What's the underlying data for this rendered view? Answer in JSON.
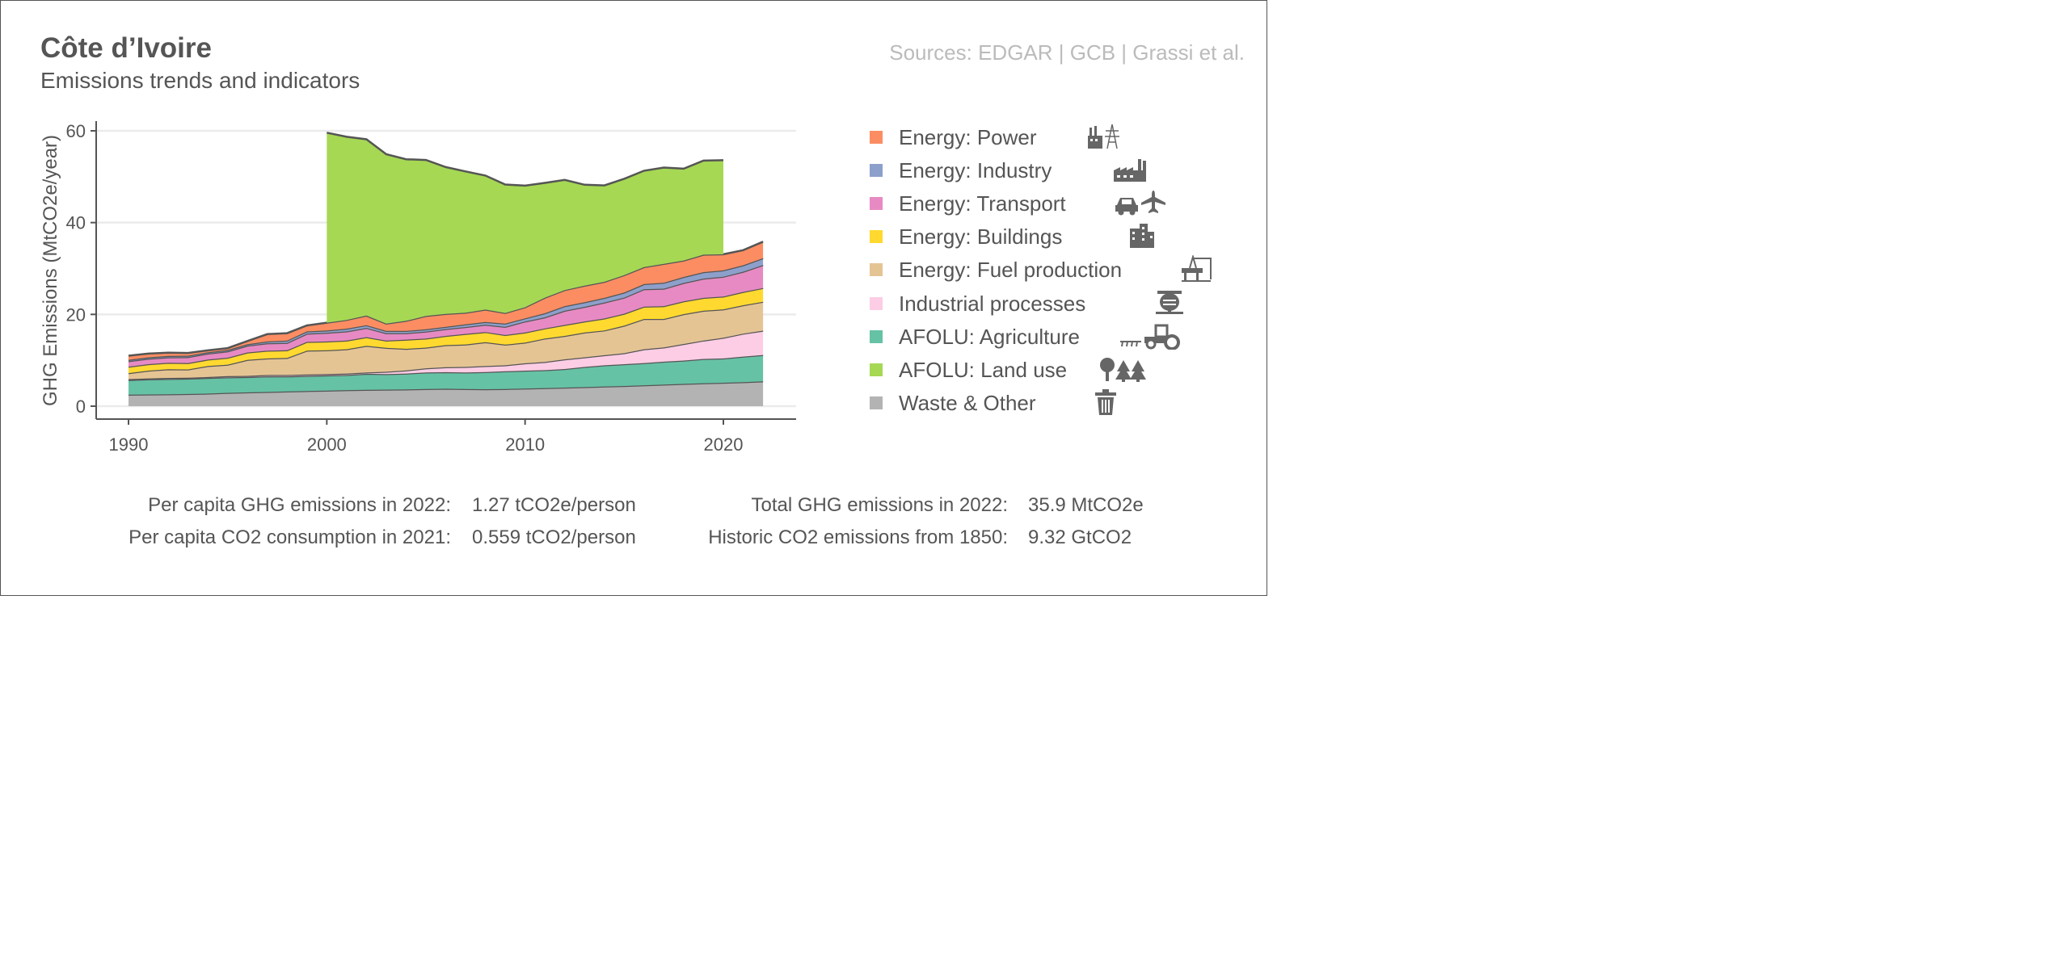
{
  "header": {
    "title": "Côte d’Ivoire",
    "subtitle": "Emissions trends and indicators",
    "sources": "Sources: EDGAR | GCB | Grassi et al."
  },
  "colors": {
    "waste": "#b3b3b3",
    "agriculture": "#66c2a5",
    "industrial": "#fccde5",
    "fuel": "#e5c494",
    "buildings": "#ffd92f",
    "transport": "#e78ac3",
    "industry": "#8da0cb",
    "power": "#fc8d62",
    "landuse": "#a6d854"
  },
  "legend": [
    {
      "key": "power",
      "label": "Energy: Power",
      "icon": "power-plant-icon"
    },
    {
      "key": "industry",
      "label": "Energy: Industry",
      "icon": "factory-icon"
    },
    {
      "key": "transport",
      "label": "Energy: Transport",
      "icon": "car-plane-icon"
    },
    {
      "key": "buildings",
      "label": "Energy: Buildings",
      "icon": "buildings-icon"
    },
    {
      "key": "fuel",
      "label": "Energy: Fuel production",
      "icon": "oil-rig-icon"
    },
    {
      "key": "industrial",
      "label": "Industrial processes",
      "icon": "cement-mixer-icon"
    },
    {
      "key": "agriculture",
      "label": "AFOLU: Agriculture",
      "icon": "tractor-icon"
    },
    {
      "key": "landuse",
      "label": "AFOLU: Land use",
      "icon": "trees-icon"
    },
    {
      "key": "waste",
      "label": "Waste & Other",
      "icon": "trash-icon"
    }
  ],
  "stats": {
    "per_capita_ghg_label": "Per capita GHG emissions in 2022:",
    "per_capita_ghg_value": "1.27 tCO2e/person",
    "per_capita_co2_label": "Per capita CO2 consumption in 2021:",
    "per_capita_co2_value": "0.559 tCO2/person",
    "total_ghg_label": "Total GHG emissions in 2022:",
    "total_ghg_value": "35.9 MtCO2e",
    "historic_co2_label": "Historic CO2 emissions from 1850:",
    "historic_co2_value": "9.32 GtCO2"
  },
  "chart_data": {
    "type": "area",
    "stacked": true,
    "ylabel": "GHG Emissions (MtCO2e/year)",
    "xlabel": "",
    "xlim": [
      1990,
      2022
    ],
    "ylim": [
      0,
      60
    ],
    "x_ticks": [
      1990,
      2000,
      2010,
      2020
    ],
    "y_ticks": [
      0,
      20,
      40,
      60
    ],
    "grid": "horizontal",
    "legend_position": "right",
    "x": [
      1990,
      1991,
      1992,
      1993,
      1994,
      1995,
      1996,
      1997,
      1998,
      1999,
      2000,
      2001,
      2002,
      2003,
      2004,
      2005,
      2006,
      2007,
      2008,
      2009,
      2010,
      2011,
      2012,
      2013,
      2014,
      2015,
      2016,
      2017,
      2018,
      2019,
      2020,
      2021,
      2022
    ],
    "series": [
      {
        "key": "waste",
        "name": "Waste & Other",
        "values": [
          2.5,
          2.55,
          2.6,
          2.65,
          2.75,
          2.9,
          3.0,
          3.1,
          3.2,
          3.3,
          3.4,
          3.5,
          3.55,
          3.6,
          3.65,
          3.75,
          3.8,
          3.75,
          3.7,
          3.75,
          3.85,
          3.95,
          4.05,
          4.15,
          4.3,
          4.4,
          4.55,
          4.7,
          4.85,
          5.0,
          5.1,
          5.25,
          5.4
        ]
      },
      {
        "key": "agriculture",
        "name": "AFOLU: Agriculture",
        "values": [
          3.2,
          3.3,
          3.35,
          3.35,
          3.4,
          3.4,
          3.35,
          3.4,
          3.3,
          3.3,
          3.3,
          3.3,
          3.5,
          3.4,
          3.45,
          3.6,
          3.6,
          3.6,
          3.75,
          3.85,
          3.9,
          3.9,
          4.05,
          4.4,
          4.6,
          4.75,
          4.85,
          5.0,
          5.1,
          5.3,
          5.3,
          5.55,
          5.75
        ]
      },
      {
        "key": "industrial",
        "name": "Industrial processes",
        "values": [
          0.2,
          0.2,
          0.2,
          0.2,
          0.2,
          0.25,
          0.25,
          0.3,
          0.3,
          0.3,
          0.3,
          0.3,
          0.3,
          0.5,
          0.7,
          0.9,
          1.1,
          1.2,
          1.3,
          1.3,
          1.6,
          1.8,
          2.1,
          2.1,
          2.2,
          2.4,
          3.0,
          3.1,
          3.6,
          4.0,
          4.5,
          5.0,
          5.3
        ]
      },
      {
        "key": "fuel",
        "name": "Energy: Fuel production",
        "values": [
          1.3,
          1.7,
          1.9,
          1.8,
          2.4,
          2.5,
          3.5,
          3.6,
          3.7,
          5.2,
          5.2,
          5.3,
          5.8,
          5.2,
          4.7,
          4.5,
          4.8,
          4.9,
          5.2,
          4.5,
          4.5,
          5.1,
          5.1,
          5.4,
          5.4,
          6.0,
          6.6,
          6.2,
          6.5,
          6.5,
          6.2,
          6.2,
          6.3
        ]
      },
      {
        "key": "buildings",
        "name": "Energy: Buildings",
        "values": [
          1.4,
          1.4,
          1.4,
          1.4,
          1.4,
          1.5,
          1.6,
          1.7,
          1.7,
          1.9,
          1.9,
          1.9,
          1.9,
          1.6,
          2.0,
          2.0,
          2.0,
          2.3,
          2.2,
          2.1,
          2.2,
          2.2,
          2.4,
          2.4,
          2.6,
          2.6,
          2.7,
          2.8,
          2.8,
          2.8,
          2.8,
          2.9,
          3.0
        ]
      },
      {
        "key": "transport",
        "name": "Energy: Transport",
        "values": [
          1.2,
          1.2,
          1.2,
          1.3,
          1.3,
          1.4,
          1.5,
          1.6,
          1.6,
          1.8,
          1.9,
          2.0,
          2.0,
          1.6,
          1.4,
          1.5,
          1.5,
          1.5,
          1.6,
          1.8,
          2.4,
          2.4,
          3.1,
          3.2,
          3.5,
          3.5,
          3.8,
          3.8,
          4.0,
          4.2,
          4.3,
          4.4,
          5.0
        ]
      },
      {
        "key": "industry",
        "name": "Energy: Industry",
        "values": [
          0.3,
          0.3,
          0.3,
          0.3,
          0.3,
          0.3,
          0.3,
          0.4,
          0.5,
          0.5,
          0.5,
          0.6,
          0.6,
          0.5,
          0.5,
          0.5,
          0.5,
          0.6,
          0.6,
          0.7,
          0.7,
          0.9,
          1.0,
          1.0,
          1.0,
          1.1,
          1.1,
          1.3,
          1.3,
          1.4,
          1.4,
          1.4,
          1.5
        ]
      },
      {
        "key": "power",
        "name": "Energy: Power",
        "values": [
          0.9,
          0.8,
          0.7,
          0.6,
          0.4,
          0.4,
          0.7,
          1.6,
          1.6,
          1.3,
          1.7,
          1.9,
          2.1,
          1.6,
          2.2,
          2.9,
          2.8,
          2.5,
          2.7,
          2.3,
          2.4,
          3.4,
          3.5,
          3.6,
          3.5,
          3.8,
          3.7,
          4.1,
          3.6,
          3.8,
          3.5,
          3.3,
          3.6
        ]
      },
      {
        "key": "landuse",
        "name": "AFOLU: Land use",
        "values": [
          null,
          null,
          null,
          null,
          null,
          null,
          null,
          null,
          null,
          null,
          41.4,
          39.9,
          38.4,
          36.9,
          35.2,
          34.0,
          32.0,
          30.8,
          29.2,
          28.0,
          26.5,
          25.0,
          24.0,
          22.0,
          21.0,
          21.0,
          21.0,
          21.0,
          20.0,
          20.5,
          20.5,
          null,
          null
        ]
      }
    ]
  }
}
